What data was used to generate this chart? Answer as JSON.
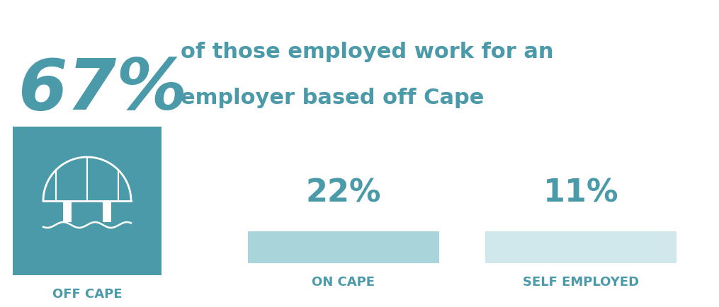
{
  "big_percent": "67%",
  "big_percent_color": "#4a9aaa",
  "headline_line1": "of those employed work for an",
  "headline_line2": "employer based off Cape",
  "headline_color": "#4a9aaa",
  "headline_fontsize": 22,
  "big_percent_fontsize": 72,
  "box_color": "#4a9aaa",
  "bar_22_color": "#a8d4da",
  "bar_11_color": "#d0e8ec",
  "label_color": "#4a9aaa",
  "label_fontsize": 13,
  "pct_22": "22%",
  "pct_11": "11%",
  "pct_fontsize": 32,
  "label_off_cape": "OFF CAPE",
  "label_on_cape": "ON CAPE",
  "label_self": "SELF EMPLOYED",
  "bg_color": "#ffffff"
}
